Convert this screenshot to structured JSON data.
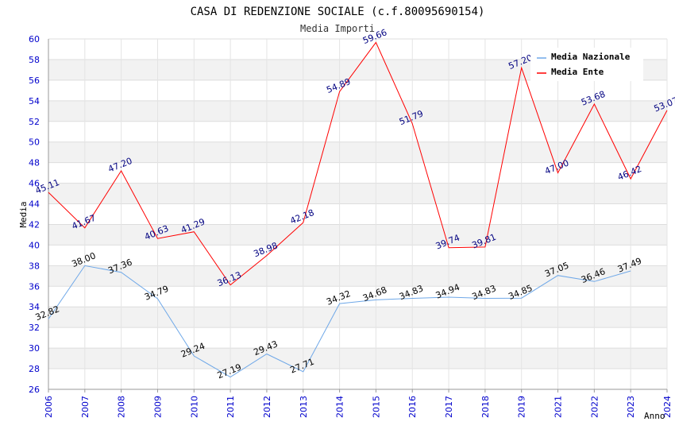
{
  "chart_data": {
    "type": "line",
    "title": "CASA DI REDENZIONE SOCIALE (c.f.80095690154)",
    "subtitle": "Media Importi",
    "xlabel": "Anno",
    "ylabel": "Media",
    "ylim": [
      26,
      60
    ],
    "ytick_step": 2,
    "grid": true,
    "legend_position": "top-right",
    "categories": [
      "2006",
      "2007",
      "2008",
      "2009",
      "2010",
      "2011",
      "2012",
      "2013",
      "2014",
      "2015",
      "2016",
      "2017",
      "2018",
      "2019",
      "2021",
      "2022",
      "2023",
      "2024"
    ],
    "series": [
      {
        "name": "Media Nazionale",
        "color": "#6fa8e8",
        "values": [
          32.82,
          38.0,
          37.36,
          34.79,
          29.24,
          27.19,
          29.43,
          27.71,
          34.32,
          34.68,
          34.83,
          34.94,
          34.83,
          34.85,
          37.05,
          36.46,
          37.49,
          null
        ],
        "labels": [
          "32.82",
          "38.00",
          "37.36",
          "34.79",
          "29.24",
          "27.19",
          "29.43",
          "27.71",
          "34.32",
          "34.68",
          "34.83",
          "34.94",
          "34.83",
          "34.85",
          "37.05",
          "36.46",
          "37.49",
          ""
        ]
      },
      {
        "name": "Media Ente",
        "color": "#ff0000",
        "values": [
          45.11,
          41.67,
          47.2,
          40.63,
          41.29,
          36.13,
          38.98,
          42.18,
          54.89,
          59.66,
          51.79,
          39.74,
          39.81,
          57.2,
          47.0,
          53.68,
          46.42,
          53.07
        ],
        "labels": [
          "45.11",
          "41.67",
          "47.20",
          "40.63",
          "41.29",
          "36.13",
          "38.98",
          "42.18",
          "54.89",
          "59.66",
          "51.79",
          "39.74",
          "39.81",
          "57.20",
          "47.00",
          "53.68",
          "46.42",
          "53.07"
        ]
      }
    ]
  }
}
